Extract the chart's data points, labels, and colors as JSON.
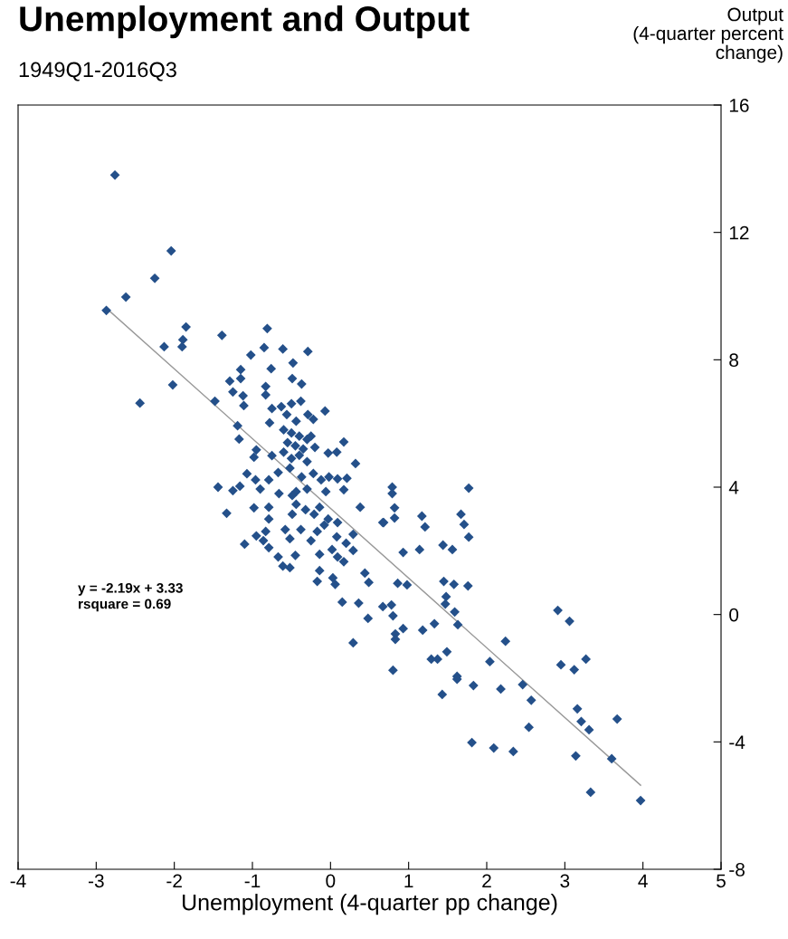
{
  "chart_data": {
    "type": "scatter",
    "title": "Unemployment and Output",
    "subtitle": "1949Q1-2016Q3",
    "xlabel": "Unemployment (4-quarter pp change)",
    "ylabel": "Output\n(4-quarter percent\nchange)",
    "annotations": [
      "y = -2.19x + 3.33\nrsquare = 0.69"
    ],
    "xlim": [
      -4,
      5
    ],
    "xticks": [
      -4,
      -3,
      -2,
      -1,
      0,
      1,
      2,
      3,
      4,
      5
    ],
    "ylim": [
      -8,
      16
    ],
    "yticks": [
      -8,
      -4,
      0,
      4,
      8,
      12,
      16
    ],
    "grid": false,
    "legend": false,
    "marker": "diamond",
    "series": [
      {
        "color": "#24508a",
        "x": [
          -2.76,
          -2.87,
          -2.62,
          -2.25,
          -2.04,
          -2.13,
          -1.89,
          -1.85,
          -2.44,
          -2.02,
          -1.39,
          -1.48,
          -1.9,
          -0.81,
          -0.85,
          -0.61,
          -0.29,
          -1.02,
          -0.48,
          -1.15,
          -0.76,
          -1.29,
          -1.15,
          -0.49,
          -0.37,
          -1.25,
          -1.12,
          -0.83,
          -0.83,
          -1.11,
          -0.75,
          -0.63,
          -0.5,
          -0.38,
          -0.56,
          -0.07,
          -0.29,
          -0.22,
          -0.44,
          -0.78,
          -1.19,
          -1.17,
          0.17,
          0.32,
          -0.95,
          -0.98,
          -0.75,
          -0.03,
          0.08,
          -0.6,
          -0.5,
          -0.4,
          -0.3,
          -0.55,
          -0.45,
          -0.35,
          -0.25,
          -0.6,
          -0.4,
          -0.2,
          -0.5,
          -0.3,
          -1.07,
          -0.96,
          -1.44,
          -1.25,
          -1.16,
          -0.9,
          -0.79,
          -0.67,
          -0.52,
          -0.37,
          -0.22,
          -0.12,
          -0.02,
          0.09,
          0.21,
          -0.66,
          -0.44,
          -0.3,
          -0.06,
          0.17,
          -1.33,
          -0.98,
          -0.79,
          -0.79,
          -0.49,
          -0.44,
          -0.49,
          -0.32,
          -0.21,
          -0.14,
          -0.03,
          0.09,
          0.38,
          0.67,
          0.79,
          0.79,
          -1.1,
          -0.95,
          -0.83,
          -0.86,
          -0.79,
          -0.58,
          -0.52,
          -0.38,
          -0.25,
          -0.17,
          -0.08,
          0.08,
          0.2,
          0.29,
          -0.67,
          -0.61,
          -0.52,
          -0.45,
          -0.14,
          0.02,
          0.09,
          0.17,
          -0.14,
          -0.17,
          0.03,
          0.06,
          0.29,
          0.44,
          0.49,
          1.77,
          0.82,
          0.82,
          0.68,
          1.17,
          1.21,
          1.67,
          1.71,
          1.77,
          0.93,
          1.14,
          1.44,
          1.56,
          0.86,
          0.98,
          1.45,
          1.58,
          1.76,
          1.48,
          1.47,
          1.59,
          1.63,
          0.15,
          0.36,
          0.48,
          0.67,
          0.78,
          0.8,
          0.83,
          0.83,
          0.93,
          0.29,
          1.18,
          1.33,
          0.8,
          1.29,
          1.37,
          1.49,
          1.62,
          1.62,
          1.43,
          1.83,
          2.04,
          2.18,
          2.24,
          2.46,
          2.57,
          2.54,
          1.81,
          2.09,
          2.34,
          2.91,
          3.06,
          2.95,
          3.12,
          3.27,
          3.16,
          3.21,
          3.31,
          3.67,
          3.14,
          3.6,
          3.33,
          3.97
        ],
        "values": [
          13.8,
          9.55,
          9.97,
          10.56,
          11.42,
          8.41,
          8.63,
          9.03,
          6.64,
          7.21,
          8.77,
          6.7,
          8.41,
          8.98,
          8.38,
          8.34,
          8.26,
          8.15,
          7.9,
          7.69,
          7.72,
          7.33,
          7.41,
          7.41,
          7.24,
          6.99,
          6.87,
          7.16,
          6.9,
          6.56,
          6.47,
          6.53,
          6.62,
          6.7,
          6.28,
          6.39,
          6.28,
          6.13,
          6.07,
          6.02,
          5.93,
          5.51,
          5.42,
          4.74,
          5.17,
          4.94,
          4.99,
          5.07,
          5.1,
          5.8,
          5.7,
          5.6,
          5.5,
          5.4,
          5.3,
          5.2,
          5.6,
          5.1,
          5.0,
          5.25,
          4.9,
          4.8,
          4.42,
          4.23,
          4.0,
          3.89,
          4.03,
          3.94,
          4.23,
          4.46,
          4.6,
          4.32,
          4.43,
          4.23,
          4.32,
          4.26,
          4.28,
          3.8,
          3.86,
          3.94,
          3.86,
          3.92,
          3.18,
          3.35,
          3.37,
          3.0,
          3.74,
          3.46,
          3.15,
          3.29,
          3.15,
          3.37,
          3.0,
          2.89,
          3.37,
          2.89,
          4.0,
          3.8,
          2.21,
          2.47,
          2.61,
          2.32,
          2.1,
          2.67,
          2.38,
          2.67,
          2.32,
          2.61,
          2.81,
          2.44,
          2.24,
          2.52,
          1.81,
          1.52,
          1.47,
          1.86,
          1.89,
          2.04,
          1.81,
          1.66,
          1.38,
          1.04,
          1.15,
          0.95,
          2.01,
          1.3,
          1.01,
          3.97,
          3.35,
          3.03,
          2.89,
          3.09,
          2.75,
          3.15,
          2.83,
          2.43,
          1.95,
          2.04,
          2.18,
          2.04,
          0.98,
          0.93,
          1.04,
          0.95,
          0.9,
          0.56,
          0.33,
          0.08,
          -0.32,
          0.39,
          0.36,
          -0.12,
          0.25,
          0.3,
          -0.04,
          -0.61,
          -0.78,
          -0.44,
          -0.89,
          -0.49,
          -0.29,
          -1.75,
          -1.4,
          -1.4,
          -1.17,
          -1.94,
          -2.03,
          -2.51,
          -2.23,
          -1.48,
          -2.34,
          -0.84,
          -2.2,
          -2.69,
          -3.54,
          -4.02,
          -4.19,
          -4.3,
          0.13,
          -0.21,
          -1.58,
          -1.73,
          -1.4,
          -2.96,
          -3.36,
          -3.62,
          -3.28,
          -4.44,
          -4.53,
          -5.58,
          -5.84
        ]
      },
      {
        "type": "line",
        "color": "#999999",
        "x": [
          -2.87,
          3.97
        ],
        "values": [
          9.62,
          -5.36
        ],
        "marker": "none",
        "line_style": "solid"
      }
    ]
  }
}
